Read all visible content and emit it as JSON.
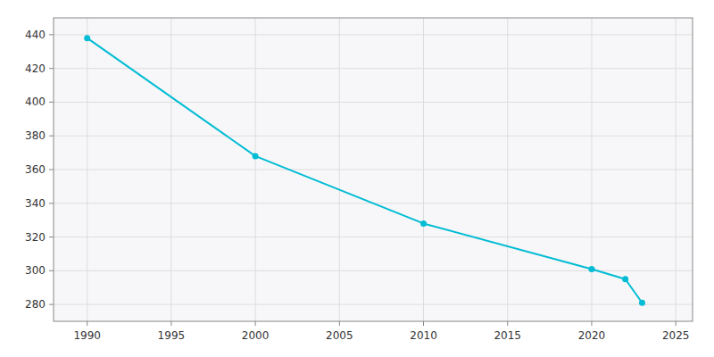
{
  "chart_data": {
    "type": "line",
    "x": [
      1990,
      2000,
      2010,
      2020,
      2022,
      2023
    ],
    "values": [
      438,
      368,
      328,
      301,
      295,
      281
    ],
    "color": "#00bcd4",
    "marker": "circle",
    "xlim": [
      1988,
      2026
    ],
    "ylim": [
      270,
      450
    ],
    "xticks": [
      1990,
      1995,
      2000,
      2005,
      2010,
      2015,
      2020,
      2025
    ],
    "yticks": [
      280,
      300,
      320,
      340,
      360,
      380,
      400,
      420,
      440
    ],
    "grid": true
  }
}
